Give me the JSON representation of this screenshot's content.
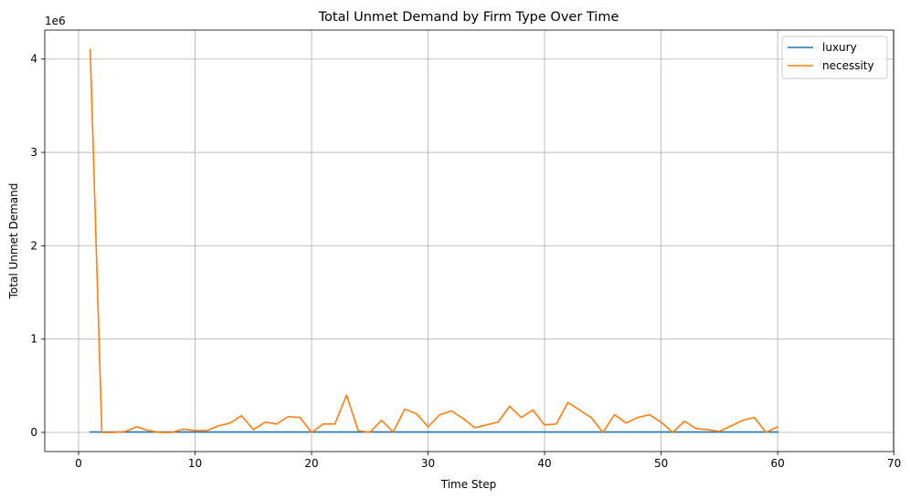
{
  "chart_data": {
    "type": "line",
    "title": "Total Unmet Demand by Firm Type Over Time",
    "xlabel": "Time Step",
    "ylabel": "Total Unmet Demand",
    "offset_label": "1e6",
    "xlim": [
      -2.9,
      69.95
    ],
    "ylim": [
      -0.205,
      4.31
    ],
    "x_ticks": [
      0,
      10,
      20,
      30,
      40,
      50,
      60,
      70
    ],
    "y_ticks": [
      0,
      1,
      2,
      3,
      4
    ],
    "grid": true,
    "legend_position": "upper right",
    "x": [
      1,
      2,
      3,
      4,
      5,
      6,
      7,
      8,
      9,
      10,
      11,
      12,
      13,
      14,
      15,
      16,
      17,
      18,
      19,
      20,
      21,
      22,
      23,
      24,
      25,
      26,
      27,
      28,
      29,
      30,
      31,
      32,
      33,
      34,
      35,
      36,
      37,
      38,
      39,
      40,
      41,
      42,
      43,
      44,
      45,
      46,
      47,
      48,
      49,
      50,
      51,
      52,
      53,
      54,
      55,
      56,
      57,
      58,
      59,
      60
    ],
    "series": [
      {
        "name": "luxury",
        "color": "#1f77b4",
        "values": [
          0.005,
          0.004,
          0.004,
          0.004,
          0.004,
          0.004,
          0.004,
          0.004,
          0.004,
          0.004,
          0.004,
          0.004,
          0.004,
          0.004,
          0.004,
          0.004,
          0.004,
          0.004,
          0.004,
          0.004,
          0.004,
          0.004,
          0.004,
          0.004,
          0.004,
          0.004,
          0.004,
          0.004,
          0.004,
          0.004,
          0.004,
          0.004,
          0.004,
          0.004,
          0.004,
          0.004,
          0.004,
          0.004,
          0.004,
          0.004,
          0.004,
          0.004,
          0.004,
          0.004,
          0.004,
          0.004,
          0.004,
          0.004,
          0.004,
          0.004,
          0.004,
          0.004,
          0.004,
          0.004,
          0.004,
          0.004,
          0.004,
          0.004,
          0.004,
          0.004
        ]
      },
      {
        "name": "necessity",
        "color": "#ff7f0e",
        "values": [
          4.1,
          0.0,
          0.0,
          0.01,
          0.06,
          0.02,
          0.0,
          0.0,
          0.035,
          0.02,
          0.02,
          0.07,
          0.1,
          0.18,
          0.03,
          0.11,
          0.09,
          0.17,
          0.16,
          0.0,
          0.09,
          0.09,
          0.4,
          0.02,
          0.0,
          0.13,
          0.005,
          0.25,
          0.2,
          0.06,
          0.19,
          0.23,
          0.15,
          0.05,
          0.08,
          0.11,
          0.28,
          0.16,
          0.24,
          0.08,
          0.09,
          0.32,
          0.24,
          0.16,
          0.0,
          0.19,
          0.1,
          0.16,
          0.19,
          0.11,
          0.0,
          0.12,
          0.04,
          0.03,
          0.01,
          0.07,
          0.13,
          0.16,
          0.0,
          0.06
        ]
      }
    ]
  }
}
